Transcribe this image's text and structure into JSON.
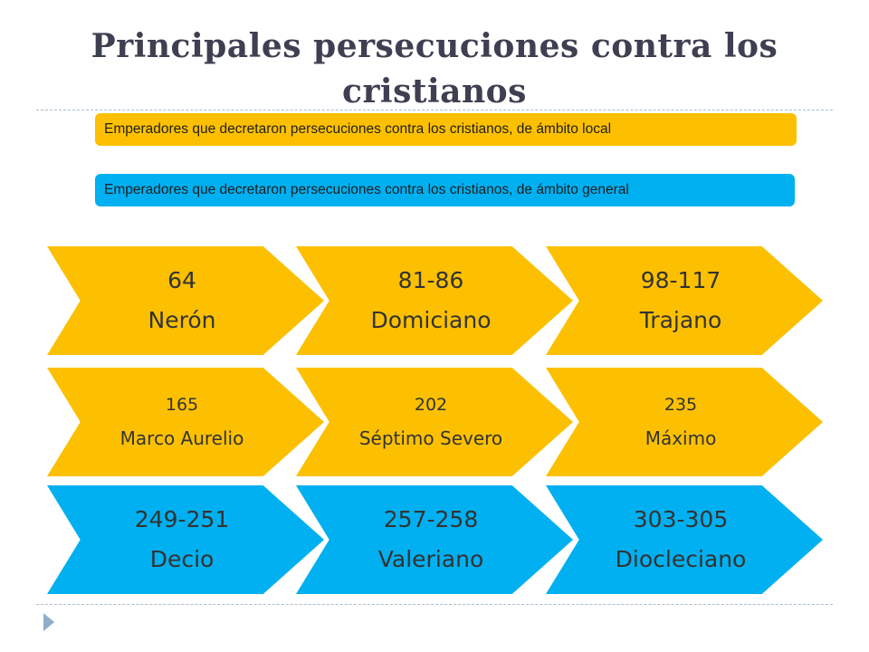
{
  "title": {
    "line1": "Principales persecuciones contra los",
    "line2": "cristianos"
  },
  "colors": {
    "local": "#fcc000",
    "general": "#00b0f0",
    "text": "#333333",
    "title": "#3f3f52"
  },
  "legend": {
    "local": "Emperadores que decretaron persecuciones contra los cristianos,  de ámbito local",
    "general": "Emperadores que decretaron persecuciones contra los cristianos,  de ámbito general"
  },
  "rows": [
    [
      {
        "year": "64",
        "name": "Nerón",
        "scope": "local"
      },
      {
        "year": "81-86",
        "name": "Domiciano",
        "scope": "local"
      },
      {
        "year": "98-117",
        "name": "Trajano",
        "scope": "local"
      }
    ],
    [
      {
        "year": "165",
        "name": "Marco Aurelio",
        "scope": "local"
      },
      {
        "year": "202",
        "name": "Séptimo Severo",
        "scope": "local"
      },
      {
        "year": "235",
        "name": "Máximo",
        "scope": "local"
      }
    ],
    [
      {
        "year": "249-251",
        "name": "Decio",
        "scope": "general"
      },
      {
        "year": "257-258",
        "name": "Valeriano",
        "scope": "general"
      },
      {
        "year": "303-305",
        "name": "Diocleciano",
        "scope": "general"
      }
    ]
  ]
}
